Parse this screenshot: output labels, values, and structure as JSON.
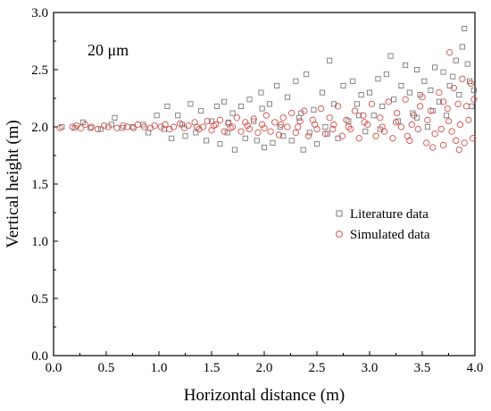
{
  "chart_data": {
    "type": "scatter",
    "xlabel": "Horizontal distance (m)",
    "ylabel": "Vertical height (m)",
    "xlim": [
      0.0,
      4.0
    ],
    "ylim": [
      0.0,
      3.0
    ],
    "x_ticks": [
      "0.0",
      "0.5",
      "1.0",
      "1.5",
      "2.0",
      "2.5",
      "3.0",
      "3.5",
      "4.0"
    ],
    "y_ticks": [
      "0.0",
      "0.5",
      "1.0",
      "1.5",
      "2.0",
      "2.5",
      "3.0"
    ],
    "annotation": "20 μm",
    "legend_position": "center-right",
    "series": [
      {
        "name": "Literature data",
        "marker": "square",
        "color": "#7a7a7a",
        "points": [
          [
            0.08,
            2.0
          ],
          [
            0.2,
            1.99
          ],
          [
            0.28,
            2.04
          ],
          [
            0.35,
            1.99
          ],
          [
            0.45,
            1.98
          ],
          [
            0.55,
            2.02
          ],
          [
            0.58,
            2.08
          ],
          [
            0.65,
            1.99
          ],
          [
            0.75,
            2.0
          ],
          [
            0.85,
            2.02
          ],
          [
            0.9,
            1.95
          ],
          [
            0.98,
            2.1
          ],
          [
            1.05,
            1.98
          ],
          [
            1.08,
            2.18
          ],
          [
            1.12,
            1.9
          ],
          [
            1.18,
            2.1
          ],
          [
            1.22,
            2.02
          ],
          [
            1.25,
            1.92
          ],
          [
            1.3,
            2.2
          ],
          [
            1.35,
            1.95
          ],
          [
            1.4,
            2.14
          ],
          [
            1.45,
            1.88
          ],
          [
            1.5,
            2.05
          ],
          [
            1.55,
            2.18
          ],
          [
            1.58,
            1.85
          ],
          [
            1.62,
            2.22
          ],
          [
            1.65,
            1.95
          ],
          [
            1.7,
            2.12
          ],
          [
            1.72,
            1.8
          ],
          [
            1.78,
            2.18
          ],
          [
            1.82,
            1.9
          ],
          [
            1.86,
            2.24
          ],
          [
            1.9,
            2.05
          ],
          [
            1.93,
            1.88
          ],
          [
            1.97,
            2.3
          ],
          [
            2.0,
            1.82
          ],
          [
            2.05,
            2.2
          ],
          [
            2.08,
            1.86
          ],
          [
            2.12,
            2.36
          ],
          [
            2.15,
            2.0
          ],
          [
            2.18,
            1.92
          ],
          [
            2.22,
            2.26
          ],
          [
            2.26,
            1.88
          ],
          [
            2.3,
            2.4
          ],
          [
            2.33,
            2.08
          ],
          [
            2.37,
            1.8
          ],
          [
            2.4,
            2.46
          ],
          [
            2.43,
            1.95
          ],
          [
            2.47,
            2.15
          ],
          [
            2.5,
            1.85
          ],
          [
            2.55,
            2.3
          ],
          [
            2.58,
            2.0
          ],
          [
            2.62,
            2.58
          ],
          [
            2.66,
            2.2
          ],
          [
            2.7,
            1.9
          ],
          [
            2.75,
            2.36
          ],
          [
            2.8,
            2.05
          ],
          [
            2.84,
            2.4
          ],
          [
            2.88,
            2.2
          ],
          [
            2.92,
            2.28
          ],
          [
            2.96,
            1.96
          ],
          [
            3.0,
            2.3
          ],
          [
            3.04,
            2.1
          ],
          [
            3.08,
            2.42
          ],
          [
            3.12,
            2.18
          ],
          [
            3.16,
            2.46
          ],
          [
            3.2,
            2.62
          ],
          [
            3.23,
            2.24
          ],
          [
            3.27,
            2.05
          ],
          [
            3.3,
            2.36
          ],
          [
            3.34,
            2.54
          ],
          [
            3.38,
            2.3
          ],
          [
            3.41,
            2.12
          ],
          [
            3.45,
            2.5
          ],
          [
            3.48,
            2.28
          ],
          [
            3.52,
            2.4
          ],
          [
            3.55,
            2.0
          ],
          [
            3.58,
            2.32
          ],
          [
            3.62,
            2.52
          ],
          [
            3.66,
            2.22
          ],
          [
            3.7,
            2.48
          ],
          [
            3.73,
            2.1
          ],
          [
            3.76,
            2.36
          ],
          [
            3.79,
            2.44
          ],
          [
            3.82,
            2.58
          ],
          [
            3.85,
            2.28
          ],
          [
            3.88,
            2.7
          ],
          [
            3.9,
            2.86
          ],
          [
            3.93,
            2.55
          ],
          [
            3.95,
            2.4
          ],
          [
            3.97,
            2.18
          ],
          [
            3.99,
            2.32
          ],
          [
            3.45,
            2.08
          ],
          [
            3.6,
            2.14
          ],
          [
            3.1,
            1.98
          ],
          [
            2.9,
            2.1
          ],
          [
            2.6,
            1.94
          ],
          [
            2.35,
            2.12
          ],
          [
            1.98,
            2.16
          ],
          [
            1.66,
            2.04
          ]
        ]
      },
      {
        "name": "Simulated data",
        "marker": "circle",
        "color": "#d2504a",
        "points": [
          [
            0.06,
            1.99
          ],
          [
            0.18,
            2.0
          ],
          [
            0.22,
            2.01
          ],
          [
            0.26,
            1.99
          ],
          [
            0.3,
            2.02
          ],
          [
            0.36,
            2.0
          ],
          [
            0.42,
            1.98
          ],
          [
            0.48,
            2.01
          ],
          [
            0.52,
            2.0
          ],
          [
            0.6,
            1.99
          ],
          [
            0.66,
            2.01
          ],
          [
            0.7,
            2.0
          ],
          [
            0.76,
            1.99
          ],
          [
            0.8,
            2.02
          ],
          [
            0.86,
            2.0
          ],
          [
            0.92,
            1.99
          ],
          [
            0.96,
            2.01
          ],
          [
            1.02,
            2.0
          ],
          [
            1.06,
            2.02
          ],
          [
            1.1,
            1.98
          ],
          [
            1.14,
            2.0
          ],
          [
            1.2,
            2.03
          ],
          [
            1.24,
            1.99
          ],
          [
            1.28,
            2.01
          ],
          [
            1.34,
            2.04
          ],
          [
            1.38,
            1.98
          ],
          [
            1.42,
            2.0
          ],
          [
            1.46,
            2.05
          ],
          [
            1.5,
            1.97
          ],
          [
            1.54,
            2.02
          ],
          [
            1.58,
            2.06
          ],
          [
            1.62,
            1.96
          ],
          [
            1.66,
            2.03
          ],
          [
            1.7,
            2.0
          ],
          [
            1.74,
            2.08
          ],
          [
            1.78,
            1.96
          ],
          [
            1.82,
            2.04
          ],
          [
            1.86,
            1.98
          ],
          [
            1.9,
            2.07
          ],
          [
            1.94,
            1.95
          ],
          [
            1.98,
            2.02
          ],
          [
            2.02,
            2.1
          ],
          [
            2.06,
            1.96
          ],
          [
            2.1,
            2.04
          ],
          [
            2.14,
            1.93
          ],
          [
            2.18,
            2.08
          ],
          [
            2.22,
            2.0
          ],
          [
            2.26,
            2.12
          ],
          [
            2.3,
            1.95
          ],
          [
            2.34,
            2.05
          ],
          [
            2.38,
            2.14
          ],
          [
            2.42,
            1.92
          ],
          [
            2.46,
            2.06
          ],
          [
            2.5,
            1.98
          ],
          [
            2.54,
            2.16
          ],
          [
            2.58,
            1.94
          ],
          [
            2.62,
            2.08
          ],
          [
            2.66,
            2.02
          ],
          [
            2.7,
            2.18
          ],
          [
            2.74,
            1.92
          ],
          [
            2.78,
            2.06
          ],
          [
            2.82,
            1.98
          ],
          [
            2.86,
            2.14
          ],
          [
            2.9,
            1.9
          ],
          [
            2.94,
            2.1
          ],
          [
            2.98,
            2.02
          ],
          [
            3.02,
            2.2
          ],
          [
            3.06,
            1.92
          ],
          [
            3.1,
            2.08
          ],
          [
            3.14,
            1.96
          ],
          [
            3.18,
            2.22
          ],
          [
            3.22,
            1.9
          ],
          [
            3.26,
            2.12
          ],
          [
            3.3,
            2.0
          ],
          [
            3.34,
            2.24
          ],
          [
            3.38,
            1.88
          ],
          [
            3.42,
            2.1
          ],
          [
            3.46,
            1.98
          ],
          [
            3.5,
            2.26
          ],
          [
            3.54,
            1.86
          ],
          [
            3.58,
            2.14
          ],
          [
            3.62,
            1.94
          ],
          [
            3.66,
            2.3
          ],
          [
            3.7,
            1.84
          ],
          [
            3.74,
            2.16
          ],
          [
            3.76,
            2.65
          ],
          [
            3.78,
            1.96
          ],
          [
            3.8,
            2.34
          ],
          [
            3.82,
            1.88
          ],
          [
            3.84,
            2.2
          ],
          [
            3.86,
            2.02
          ],
          [
            3.88,
            2.42
          ],
          [
            3.9,
            1.86
          ],
          [
            3.92,
            2.18
          ],
          [
            3.94,
            2.06
          ],
          [
            3.96,
            2.38
          ],
          [
            3.98,
            1.9
          ],
          [
            3.99,
            2.24
          ],
          [
            3.75,
            2.05
          ],
          [
            3.68,
            1.98
          ],
          [
            3.55,
            2.06
          ],
          [
            3.4,
            2.02
          ],
          [
            3.25,
            2.04
          ],
          [
            3.12,
            2.0
          ],
          [
            2.95,
            2.04
          ],
          [
            2.8,
            2.0
          ],
          [
            2.65,
            1.98
          ],
          [
            2.48,
            2.02
          ],
          [
            2.32,
            2.0
          ],
          [
            2.16,
            2.02
          ],
          [
            2.0,
            1.99
          ],
          [
            1.84,
            2.01
          ],
          [
            1.68,
            1.99
          ],
          [
            1.52,
            2.01
          ],
          [
            1.36,
            2.0
          ],
          [
            3.85,
            1.8
          ],
          [
            3.7,
            2.22
          ],
          [
            3.6,
            1.82
          ],
          [
            3.48,
            2.18
          ],
          [
            3.36,
            1.92
          ]
        ]
      }
    ]
  }
}
